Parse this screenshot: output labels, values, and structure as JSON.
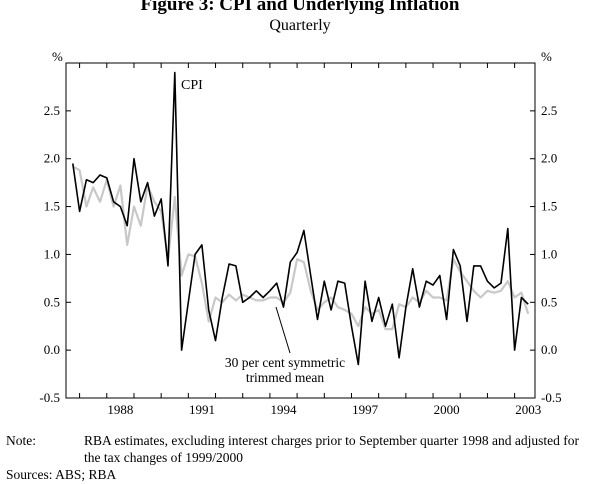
{
  "chart_data": {
    "type": "line",
    "title": "Figure 3: CPI and Underlying Inflation",
    "subtitle": "Quarterly",
    "ylabel_left": "%",
    "ylabel_right": "%",
    "ylim": [
      -0.5,
      3.0
    ],
    "yticks": [
      "-0.5",
      "0.0",
      "0.5",
      "1.0",
      "1.5",
      "2.0",
      "2.5"
    ],
    "xlim": [
      1986.5,
      2003.75
    ],
    "xticks": [
      "1988",
      "1991",
      "1994",
      "1997",
      "2000",
      "2003"
    ],
    "grid": false,
    "annotations": {
      "cpi": "CPI",
      "trimmed_line1": "30 per cent symmetric",
      "trimmed_line2": "trimmed mean"
    },
    "series": [
      {
        "name": "CPI",
        "color": "#000000",
        "x": [
          1986.75,
          1987.0,
          1987.25,
          1987.5,
          1987.75,
          1988.0,
          1988.25,
          1988.5,
          1988.75,
          1989.0,
          1989.25,
          1989.5,
          1989.75,
          1990.0,
          1990.25,
          1990.5,
          1990.75,
          1991.0,
          1991.25,
          1991.5,
          1991.75,
          1992.0,
          1992.25,
          1992.5,
          1992.75,
          1993.0,
          1993.25,
          1993.5,
          1993.75,
          1994.0,
          1994.25,
          1994.5,
          1994.75,
          1995.0,
          1995.25,
          1995.5,
          1995.75,
          1996.0,
          1996.25,
          1996.5,
          1996.75,
          1997.0,
          1997.25,
          1997.5,
          1997.75,
          1998.0,
          1998.25,
          1998.5,
          1998.75,
          1999.0,
          1999.25,
          1999.5,
          1999.75,
          2000.0,
          2000.25,
          2000.5,
          2000.75,
          2001.0,
          2001.25,
          2001.5,
          2001.75,
          2002.0,
          2002.25,
          2002.5,
          2002.75,
          2003.0,
          2003.25,
          2003.5
        ],
        "values": [
          1.95,
          1.45,
          1.78,
          1.75,
          1.83,
          1.8,
          1.55,
          1.5,
          1.3,
          2.0,
          1.55,
          1.75,
          1.4,
          1.58,
          0.88,
          2.9,
          0.0,
          0.5,
          1.0,
          1.1,
          0.42,
          0.1,
          0.55,
          0.9,
          0.88,
          0.5,
          0.55,
          0.62,
          0.55,
          0.62,
          0.7,
          0.45,
          0.92,
          1.02,
          1.25,
          0.78,
          0.32,
          0.72,
          0.42,
          0.72,
          0.7,
          0.25,
          -0.15,
          0.72,
          0.3,
          0.55,
          0.25,
          0.48,
          -0.08,
          0.45,
          0.85,
          0.45,
          0.72,
          0.68,
          0.78,
          0.32,
          1.05,
          0.88,
          0.3,
          0.88,
          0.88,
          0.72,
          0.65,
          0.7,
          1.27,
          0.0,
          0.55,
          0.48
        ]
      },
      {
        "name": "30 per cent symmetric trimmed mean",
        "color": "#c8c8c8",
        "x": [
          1986.75,
          1987.0,
          1987.25,
          1987.5,
          1987.75,
          1988.0,
          1988.25,
          1988.5,
          1988.75,
          1989.0,
          1989.25,
          1989.5,
          1989.75,
          1990.0,
          1990.25,
          1990.5,
          1990.75,
          1991.0,
          1991.25,
          1991.5,
          1991.75,
          1992.0,
          1992.25,
          1992.5,
          1992.75,
          1993.0,
          1993.25,
          1993.5,
          1993.75,
          1994.0,
          1994.25,
          1994.5,
          1994.75,
          1995.0,
          1995.25,
          1995.5,
          1995.75,
          1996.0,
          1996.25,
          1996.5,
          1996.75,
          1997.0,
          1997.25,
          1997.5,
          1997.75,
          1998.0,
          1998.25,
          1998.5,
          1998.75,
          1999.0,
          1999.25,
          1999.5,
          1999.75,
          2000.0,
          2000.25,
          2000.5,
          2000.75,
          2001.0,
          2001.25,
          2001.5,
          2001.75,
          2002.0,
          2002.25,
          2002.5,
          2002.75,
          2003.0,
          2003.25,
          2003.5
        ],
        "values": [
          1.92,
          1.88,
          1.5,
          1.7,
          1.55,
          1.78,
          1.5,
          1.72,
          1.1,
          1.5,
          1.3,
          1.72,
          1.55,
          1.45,
          0.95,
          1.6,
          0.78,
          1.0,
          0.98,
          0.7,
          0.3,
          0.55,
          0.5,
          0.58,
          0.52,
          0.58,
          0.55,
          0.52,
          0.52,
          0.55,
          0.55,
          0.5,
          0.6,
          0.95,
          0.92,
          0.62,
          0.42,
          0.5,
          0.55,
          0.45,
          0.42,
          0.38,
          0.25,
          0.45,
          0.38,
          0.42,
          0.22,
          0.22,
          0.48,
          0.45,
          0.55,
          0.5,
          0.62,
          0.55,
          0.55,
          0.52,
          0.95,
          0.82,
          0.72,
          0.62,
          0.55,
          0.62,
          0.6,
          0.62,
          0.72,
          0.55,
          0.6,
          0.38
        ]
      }
    ]
  },
  "note_label": "Note:",
  "note_text": "RBA estimates, excluding interest charges prior to September quarter 1998 and adjusted for the tax changes of 1999/2000",
  "sources": "Sources: ABS; RBA"
}
